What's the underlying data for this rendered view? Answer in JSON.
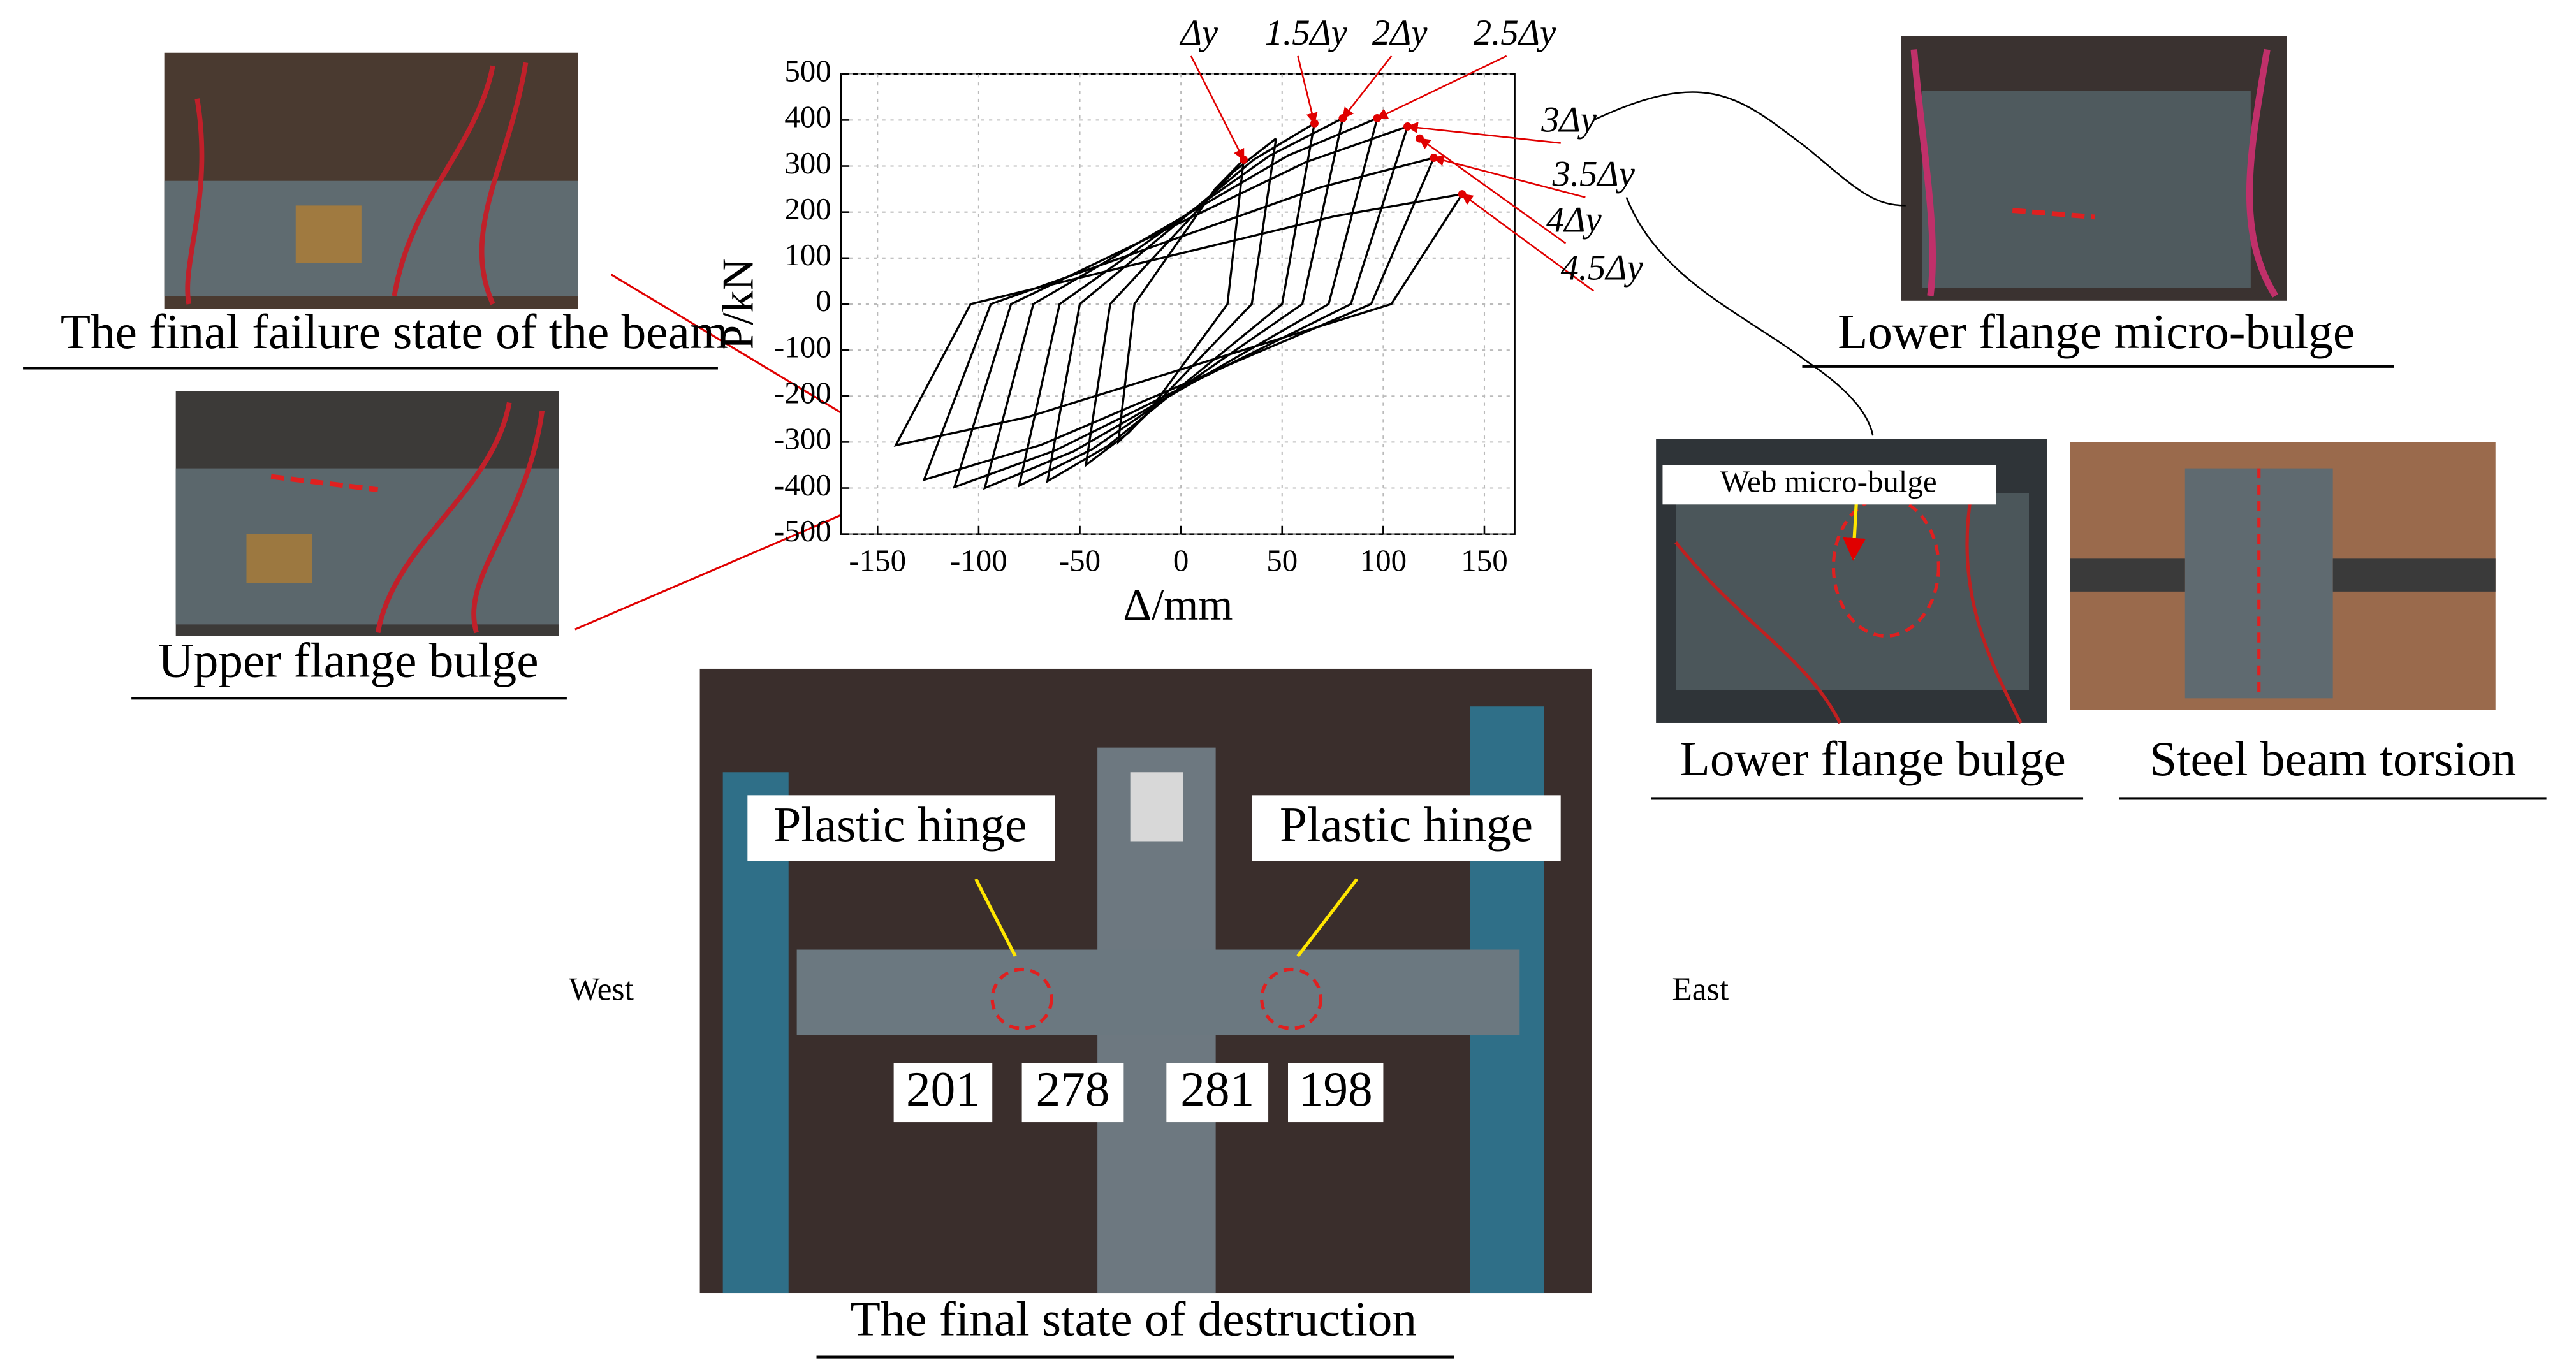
{
  "figure": {
    "captions": [
      "The final failure state of the beam",
      "Upper flange bulge",
      "Lower flange micro-bulge",
      "Lower flange bulge",
      "Steel beam torsion",
      "The final state of destruction"
    ],
    "web_label": "Web micro-bulge",
    "callouts": [
      "Plastic hinge",
      "Plastic hinge"
    ],
    "directions": [
      "West",
      "East"
    ],
    "hinge_values": [
      201,
      278,
      281,
      198
    ]
  },
  "chart_data": {
    "type": "line",
    "xlabel": "Δ/mm",
    "ylabel": "P/kN",
    "xlim": [
      -168,
      165
    ],
    "ylim": [
      -500,
      500
    ],
    "xticks": [
      -150,
      -100,
      -50,
      0,
      50,
      100,
      150
    ],
    "yticks": [
      -500,
      -400,
      -300,
      -200,
      -100,
      0,
      100,
      200,
      300,
      400,
      500
    ],
    "grid": true,
    "series": [
      {
        "color": "#000000",
        "x": [
          31,
          23,
          -17,
          -31,
          -23,
          17,
          31
        ],
        "values": [
          314,
          0,
          -240,
          -300,
          0,
          251,
          314
        ]
      },
      {
        "color": "#000000",
        "x": [
          47,
          35,
          -26,
          -47,
          -35,
          26,
          47
        ],
        "values": [
          360,
          0,
          -280,
          -350,
          0,
          288,
          360
        ]
      },
      {
        "color": "#000000",
        "x": [
          66,
          50,
          -36,
          -66,
          -50,
          36,
          66
        ],
        "values": [
          393,
          0,
          -308,
          -385,
          0,
          314,
          393
        ]
      },
      {
        "color": "#000000",
        "x": [
          80,
          60,
          -44,
          -80,
          -60,
          44,
          80
        ],
        "values": [
          404,
          0,
          -316,
          -395,
          0,
          323,
          404
        ]
      },
      {
        "color": "#000000",
        "x": [
          97,
          73,
          -53,
          -97,
          -73,
          53,
          97
        ],
        "values": [
          404,
          0,
          -320,
          -400,
          0,
          323,
          404
        ]
      },
      {
        "color": "#000000",
        "x": [
          112,
          84,
          -62,
          -112,
          -84,
          62,
          112
        ],
        "values": [
          386,
          0,
          -318,
          -398,
          0,
          309,
          386
        ]
      },
      {
        "color": "#000000",
        "x": [
          125,
          94,
          -69,
          -127,
          -94,
          69,
          125
        ],
        "values": [
          318,
          0,
          -306,
          -382,
          0,
          254,
          318
        ]
      },
      {
        "color": "#000000",
        "x": [
          139,
          104,
          -76,
          -141,
          -104,
          76,
          139
        ],
        "values": [
          239,
          0,
          -246,
          -307,
          0,
          191,
          239
        ]
      }
    ],
    "annotations": [
      {
        "text": "Δy",
        "x": 31,
        "y": 314
      },
      {
        "text": "1.5Δy",
        "x": 66,
        "y": 393
      },
      {
        "text": "2Δy",
        "x": 80,
        "y": 404
      },
      {
        "text": "2.5Δy",
        "x": 97,
        "y": 404
      },
      {
        "text": "3Δy",
        "x": 112,
        "y": 386
      },
      {
        "text": "3.5Δy",
        "x": 125,
        "y": 318
      },
      {
        "text": "4Δy",
        "x": 118,
        "y": 360
      },
      {
        "text": "4.5Δy",
        "x": 139,
        "y": 239
      }
    ],
    "marker_color": "#e00000"
  }
}
